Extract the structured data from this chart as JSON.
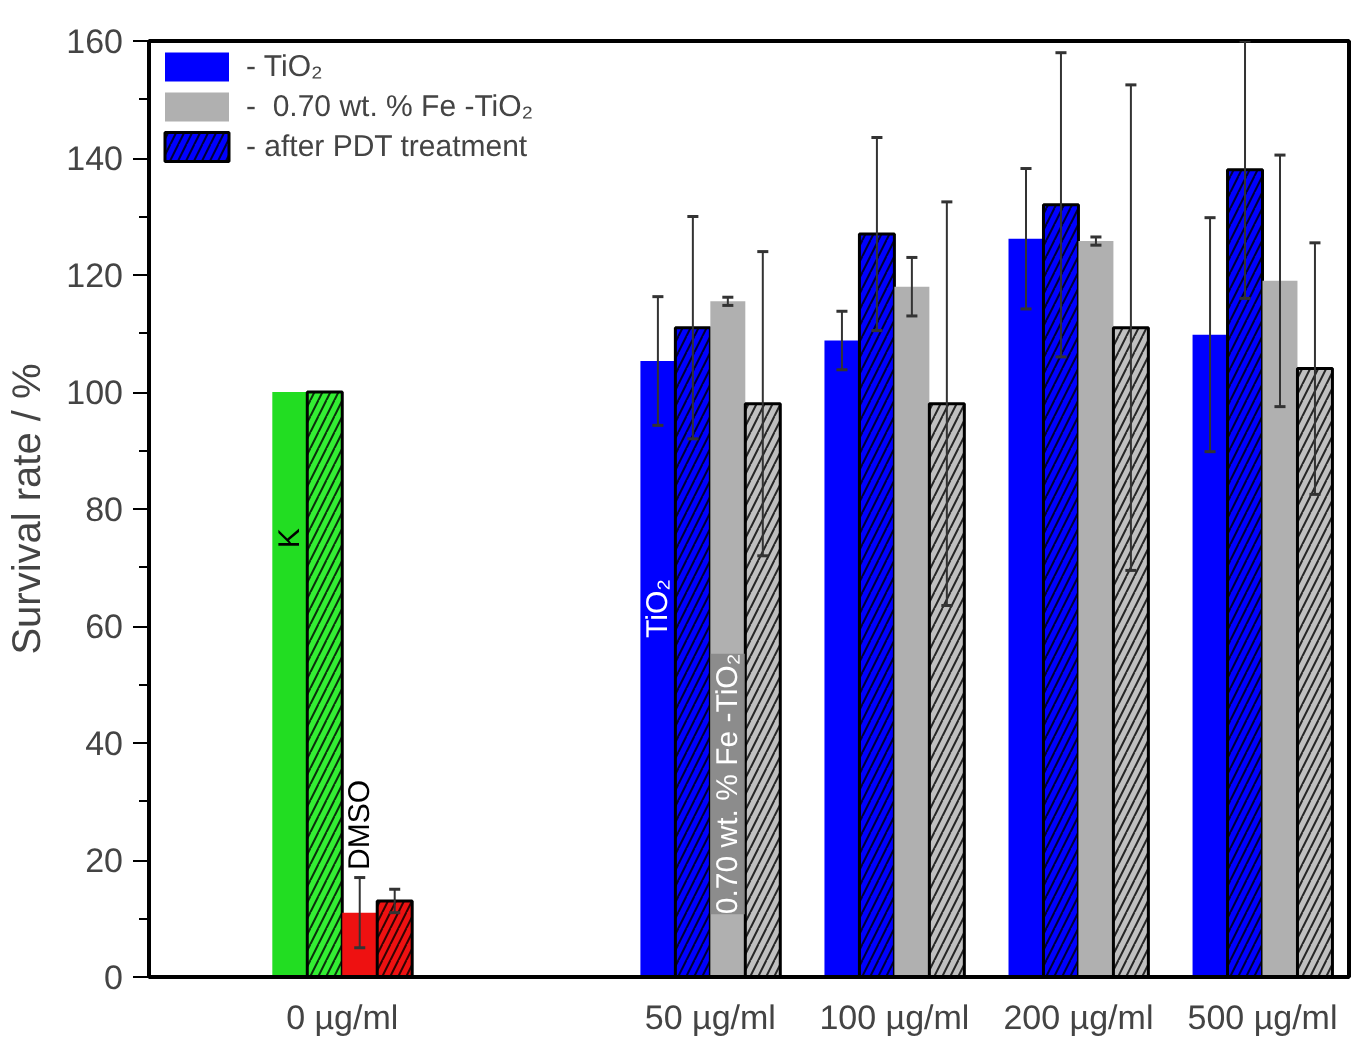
{
  "chart_data": {
    "type": "bar",
    "ylabel": "Survival rate / %",
    "categories": [
      "0 µg/ml",
      "50 µg/ml",
      "100 µg/ml",
      "200 µg/ml",
      "500 µg/ml"
    ],
    "ylim": [
      0,
      160
    ],
    "yticks": [
      0,
      20,
      40,
      60,
      80,
      100,
      120,
      140,
      160
    ],
    "grid": false,
    "legend": "top left",
    "series": [
      {
        "name": "- TiO₂",
        "color": "#0000ff",
        "colors": [
          "#22dd22",
          "#0000ff",
          "#0000ff",
          "#0000ff",
          "#0000ff"
        ],
        "values": [
          100,
          105.3,
          108.8,
          126.2,
          109.8
        ],
        "errors": [
          null,
          11,
          5,
          12,
          20
        ]
      },
      {
        "name": "- after PDT treatment",
        "color": "#0000ff",
        "colors": [
          "#33ee33",
          "#0000ff",
          "#0000ff",
          "#0000ff",
          "#0000ff"
        ],
        "values": [
          100,
          111,
          127,
          132,
          138
        ],
        "errors": [
          null,
          19,
          16.5,
          26,
          22
        ]
      },
      {
        "name": "-  0.70 wt. % Fe -TiO₂",
        "color": "#b0b0b0",
        "colors": [
          "#ee1111",
          "#b0b0b0",
          "#b0b0b0",
          "#b0b0b0",
          "#b0b0b0"
        ],
        "values": [
          11,
          115.5,
          118,
          125.8,
          119
        ],
        "errors": [
          6,
          0.7,
          5,
          0.7,
          21.5
        ]
      },
      {
        "colors": [
          "#ee1111",
          "#c0c0c0",
          "#c0c0c0",
          "#c0c0c0",
          "#c0c0c0"
        ],
        "values": [
          13,
          98,
          98,
          111,
          104
        ],
        "errors": [
          2,
          26,
          34.5,
          41.5,
          21.5
        ]
      }
    ],
    "annotations": [
      {
        "text": "K",
        "x": "0 µg/ml",
        "y": 75
      },
      {
        "text": "DMSO",
        "x": "0 µg/ml",
        "y": 26
      },
      {
        "text": "TiO₂",
        "x": "50 µg/ml",
        "y": 63
      },
      {
        "text": "0.70 wt. % Fe -TiO₂",
        "x": "50 µg/ml",
        "y": 33
      }
    ]
  }
}
